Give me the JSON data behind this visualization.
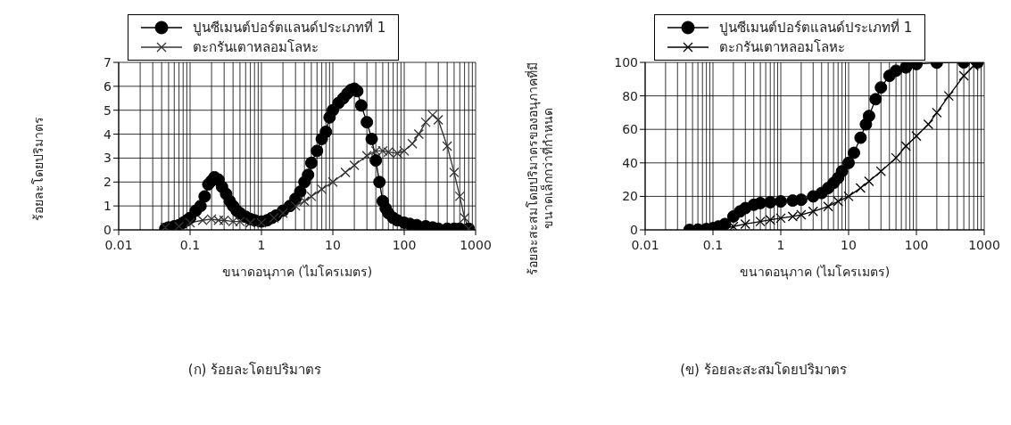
{
  "chart_data": [
    {
      "type": "line",
      "xlabel": "ขนาดอนุภาค (ไมโครเมตร)",
      "ylabel": "ร้อยละโดยปริมาตร",
      "log": "x",
      "grid": true,
      "legend": "top",
      "line_style": "solid",
      "xlim": [
        0.01,
        1000
      ],
      "ylim": [
        0,
        7
      ],
      "yticks": [
        0,
        1,
        2,
        3,
        4,
        5,
        6,
        7
      ],
      "xticks": [
        0.01,
        {
          "value": 0.02,
          "label": null
        },
        {
          "value": 0.03,
          "label": null
        },
        {
          "value": 0.04,
          "label": null
        },
        {
          "value": 0.05,
          "label": null
        },
        {
          "value": 0.06,
          "label": null
        },
        {
          "value": 0.07,
          "label": null
        },
        {
          "value": 0.08,
          "label": null
        },
        {
          "value": 0.09,
          "label": null
        },
        0.1,
        {
          "value": 0.2,
          "label": null
        },
        {
          "value": 0.3,
          "label": null
        },
        {
          "value": 0.4,
          "label": null
        },
        {
          "value": 0.5,
          "label": null
        },
        {
          "value": 0.6,
          "label": null
        },
        {
          "value": 0.7,
          "label": null
        },
        {
          "value": 0.8,
          "label": null
        },
        {
          "value": 0.9,
          "label": null
        },
        1,
        {
          "value": 2,
          "label": null
        },
        {
          "value": 3,
          "label": null
        },
        {
          "value": 4,
          "label": null
        },
        {
          "value": 5,
          "label": null
        },
        {
          "value": 6,
          "label": null
        },
        {
          "value": 7,
          "label": null
        },
        {
          "value": 8,
          "label": null
        },
        {
          "value": 9,
          "label": null
        },
        10,
        {
          "value": 20,
          "label": null
        },
        {
          "value": 30,
          "label": null
        },
        {
          "value": 40,
          "label": null
        },
        {
          "value": 50,
          "label": null
        },
        {
          "value": 60,
          "label": null
        },
        {
          "value": 70,
          "label": null
        },
        {
          "value": 80,
          "label": null
        },
        {
          "value": 90,
          "label": null
        },
        100,
        {
          "value": 200,
          "label": null
        },
        {
          "value": 300,
          "label": null
        },
        {
          "value": 400,
          "label": null
        },
        {
          "value": 500,
          "label": null
        },
        {
          "value": 600,
          "label": null
        },
        {
          "value": 700,
          "label": null
        },
        {
          "value": 800,
          "label": null
        },
        {
          "value": 900,
          "label": null
        },
        1000
      ],
      "annotations": [
        "(ก) ร้อยละโดยปริมาตร"
      ],
      "series": [
        {
          "name": "ปูนซีเมนต์ปอร์ตแลนด์ประเภทที่ 1",
          "color": "#000000",
          "marker": "circle",
          "x": [
            0.045,
            0.05,
            0.06,
            0.07,
            0.08,
            0.09,
            0.1,
            0.12,
            0.14,
            0.16,
            0.18,
            0.2,
            0.22,
            0.25,
            0.28,
            0.32,
            0.36,
            0.4,
            0.45,
            0.5,
            0.6,
            0.7,
            0.8,
            1,
            1.2,
            1.4,
            1.6,
            2,
            2.5,
            3,
            3.5,
            4,
            4.5,
            5,
            6,
            7,
            8,
            9,
            10,
            12,
            14,
            16,
            18,
            20,
            22,
            25,
            30,
            35,
            40,
            45,
            50,
            55,
            60,
            70,
            80,
            100,
            120,
            150,
            200,
            250,
            300,
            400,
            500,
            600,
            800
          ],
          "values": [
            0.05,
            0.1,
            0.15,
            0.2,
            0.3,
            0.4,
            0.5,
            0.8,
            1.0,
            1.4,
            1.9,
            2.05,
            2.2,
            2.1,
            1.8,
            1.5,
            1.2,
            1.0,
            0.8,
            0.7,
            0.55,
            0.45,
            0.4,
            0.35,
            0.4,
            0.5,
            0.6,
            0.8,
            1.0,
            1.3,
            1.6,
            2.0,
            2.3,
            2.8,
            3.3,
            3.8,
            4.1,
            4.7,
            5.0,
            5.3,
            5.5,
            5.7,
            5.85,
            5.9,
            5.8,
            5.2,
            4.5,
            3.8,
            2.9,
            2.0,
            1.2,
            0.9,
            0.7,
            0.5,
            0.4,
            0.3,
            0.25,
            0.2,
            0.15,
            0.1,
            0.05,
            0.05,
            0.05,
            0.05,
            0.05
          ]
        },
        {
          "name": "ตะกรันเตาหลอมโลหะ",
          "color": "#333333",
          "marker": "cross",
          "x": [
            0.045,
            0.07,
            0.1,
            0.15,
            0.2,
            0.25,
            0.3,
            0.4,
            0.5,
            0.7,
            1,
            1.5,
            2,
            3,
            4,
            5,
            7,
            10,
            15,
            20,
            30,
            40,
            50,
            60,
            80,
            100,
            130,
            160,
            200,
            250,
            300,
            400,
            500,
            600,
            700,
            800
          ],
          "values": [
            0.1,
            0.15,
            0.3,
            0.4,
            0.45,
            0.4,
            0.4,
            0.35,
            0.35,
            0.3,
            0.3,
            0.5,
            0.7,
            1.0,
            1.2,
            1.4,
            1.7,
            2.0,
            2.4,
            2.7,
            3.1,
            3.3,
            3.3,
            3.25,
            3.2,
            3.3,
            3.6,
            4.0,
            4.5,
            4.8,
            4.6,
            3.5,
            2.4,
            1.4,
            0.5,
            0.05
          ]
        }
      ]
    },
    {
      "type": "line",
      "xlabel": "ขนาดอนุภาค (ไมโครเมตร)",
      "ylabel": "ร้อยละสะสมโดยปริมาตรของอนุภาคที่มี\nขนาดเล็กกว่าที่กำหนด",
      "log": "x",
      "grid": true,
      "legend": "top",
      "line_style": "solid",
      "xlim": [
        0.01,
        1000
      ],
      "ylim": [
        0,
        100
      ],
      "yticks": [
        0,
        20,
        40,
        60,
        80,
        100
      ],
      "xticks": [
        0.01,
        {
          "value": 0.02,
          "label": null
        },
        {
          "value": 0.03,
          "label": null
        },
        {
          "value": 0.04,
          "label": null
        },
        {
          "value": 0.05,
          "label": null
        },
        {
          "value": 0.06,
          "label": null
        },
        {
          "value": 0.07,
          "label": null
        },
        {
          "value": 0.08,
          "label": null
        },
        {
          "value": 0.09,
          "label": null
        },
        0.1,
        {
          "value": 0.2,
          "label": null
        },
        {
          "value": 0.3,
          "label": null
        },
        {
          "value": 0.4,
          "label": null
        },
        {
          "value": 0.5,
          "label": null
        },
        {
          "value": 0.6,
          "label": null
        },
        {
          "value": 0.7,
          "label": null
        },
        {
          "value": 0.8,
          "label": null
        },
        {
          "value": 0.9,
          "label": null
        },
        1,
        {
          "value": 2,
          "label": null
        },
        {
          "value": 3,
          "label": null
        },
        {
          "value": 4,
          "label": null
        },
        {
          "value": 5,
          "label": null
        },
        {
          "value": 6,
          "label": null
        },
        {
          "value": 7,
          "label": null
        },
        {
          "value": 8,
          "label": null
        },
        {
          "value": 9,
          "label": null
        },
        10,
        {
          "value": 20,
          "label": null
        },
        {
          "value": 30,
          "label": null
        },
        {
          "value": 40,
          "label": null
        },
        {
          "value": 50,
          "label": null
        },
        {
          "value": 60,
          "label": null
        },
        {
          "value": 70,
          "label": null
        },
        {
          "value": 80,
          "label": null
        },
        {
          "value": 90,
          "label": null
        },
        100,
        {
          "value": 200,
          "label": null
        },
        {
          "value": 300,
          "label": null
        },
        {
          "value": 400,
          "label": null
        },
        {
          "value": 500,
          "label": null
        },
        {
          "value": 600,
          "label": null
        },
        {
          "value": 700,
          "label": null
        },
        {
          "value": 800,
          "label": null
        },
        {
          "value": 900,
          "label": null
        },
        1000
      ],
      "annotations": [
        "(ข) ร้อยละสะสมโดยปริมาตร"
      ],
      "series": [
        {
          "name": "ปูนซีเมนต์ปอร์ตแลนด์ประเภทที่ 1",
          "color": "#000000",
          "marker": "circle",
          "x": [
            0.045,
            0.06,
            0.08,
            0.1,
            0.12,
            0.15,
            0.2,
            0.25,
            0.3,
            0.4,
            0.5,
            0.7,
            1,
            1.5,
            2,
            3,
            4,
            5,
            6,
            7,
            8,
            10,
            12,
            15,
            18,
            20,
            25,
            30,
            40,
            50,
            70,
            100,
            200,
            500,
            800
          ],
          "values": [
            0,
            0.2,
            0.5,
            1,
            2,
            3.5,
            8,
            11,
            13,
            15,
            16,
            16.5,
            17,
            17.5,
            18,
            20,
            22,
            25,
            28,
            31,
            35,
            40,
            46,
            55,
            63,
            68,
            78,
            85,
            92,
            95,
            97,
            99,
            99.8,
            100,
            100
          ]
        },
        {
          "name": "ตะกรันเตาหลอมโลหะ",
          "color": "#000000",
          "marker": "cross",
          "x": [
            0.1,
            0.15,
            0.2,
            0.3,
            0.5,
            0.7,
            1,
            1.5,
            2,
            3,
            5,
            7,
            10,
            15,
            20,
            30,
            50,
            70,
            100,
            150,
            200,
            300,
            500,
            700,
            800
          ],
          "values": [
            0,
            1,
            2,
            3.5,
            5,
            6,
            7,
            8,
            9,
            11,
            14,
            17,
            20,
            25,
            29,
            35,
            43,
            50,
            56,
            63,
            70,
            80,
            92,
            98,
            100
          ]
        }
      ]
    }
  ]
}
